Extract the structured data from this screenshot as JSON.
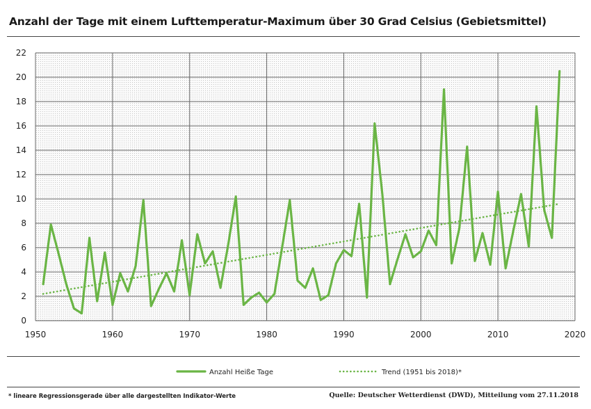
{
  "chart_data": {
    "type": "line",
    "title": "Anzahl der Tage mit einem Lufttemperatur-Maximum über 30 Grad Celsius (Gebietsmittel)",
    "xlim": [
      1950,
      2020
    ],
    "ylim": [
      0,
      22
    ],
    "x_ticks": [
      "1950",
      "1960",
      "1970",
      "1980",
      "1990",
      "2000",
      "2010",
      "2020"
    ],
    "y_ticks": [
      "0",
      "2",
      "4",
      "6",
      "8",
      "10",
      "12",
      "14",
      "16",
      "18",
      "20",
      "22"
    ],
    "grid": true,
    "legend_position": "bottom",
    "x": [
      1951,
      1952,
      1953,
      1954,
      1955,
      1956,
      1957,
      1958,
      1959,
      1960,
      1961,
      1962,
      1963,
      1964,
      1965,
      1966,
      1967,
      1968,
      1969,
      1970,
      1971,
      1972,
      1973,
      1974,
      1975,
      1976,
      1977,
      1978,
      1979,
      1980,
      1981,
      1982,
      1983,
      1984,
      1985,
      1986,
      1987,
      1988,
      1989,
      1990,
      1991,
      1992,
      1993,
      1994,
      1995,
      1996,
      1997,
      1998,
      1999,
      2000,
      2001,
      2002,
      2003,
      2004,
      2005,
      2006,
      2007,
      2008,
      2009,
      2010,
      2011,
      2012,
      2013,
      2014,
      2015,
      2016,
      2017,
      2018
    ],
    "series": [
      {
        "name": "Anzahl Heiße Tage",
        "color": "#6ab545",
        "style": "solid",
        "values": [
          3.0,
          7.9,
          5.5,
          3.0,
          1.0,
          0.6,
          6.8,
          1.6,
          5.6,
          1.3,
          3.9,
          2.4,
          4.5,
          9.9,
          1.2,
          2.6,
          3.9,
          2.4,
          6.6,
          2.1,
          7.1,
          4.7,
          5.7,
          2.7,
          6.2,
          10.2,
          1.3,
          1.9,
          2.3,
          1.5,
          2.2,
          6.0,
          9.9,
          3.3,
          2.7,
          4.3,
          1.7,
          2.1,
          4.7,
          5.8,
          5.3,
          9.6,
          1.9,
          16.2,
          10.4,
          3.0,
          5.1,
          7.1,
          5.2,
          5.7,
          7.4,
          6.2,
          19.0,
          4.7,
          7.6,
          14.3,
          4.9,
          7.2,
          4.6,
          10.6,
          4.3,
          7.4,
          10.4,
          6.1,
          17.6,
          9.1,
          6.8,
          20.5
        ]
      },
      {
        "name": "Trend (1951 bis 2018)*",
        "color": "#6ab545",
        "style": "dotted",
        "x": [
          1951,
          2018
        ],
        "values": [
          2.2,
          9.6
        ]
      }
    ]
  },
  "footnote": "* lineare Regressionsgerade über alle dargestellten Indikator-Werte",
  "source": "Quelle: Deutscher Wetterdienst (DWD), Mitteilung vom 27.11.2018"
}
